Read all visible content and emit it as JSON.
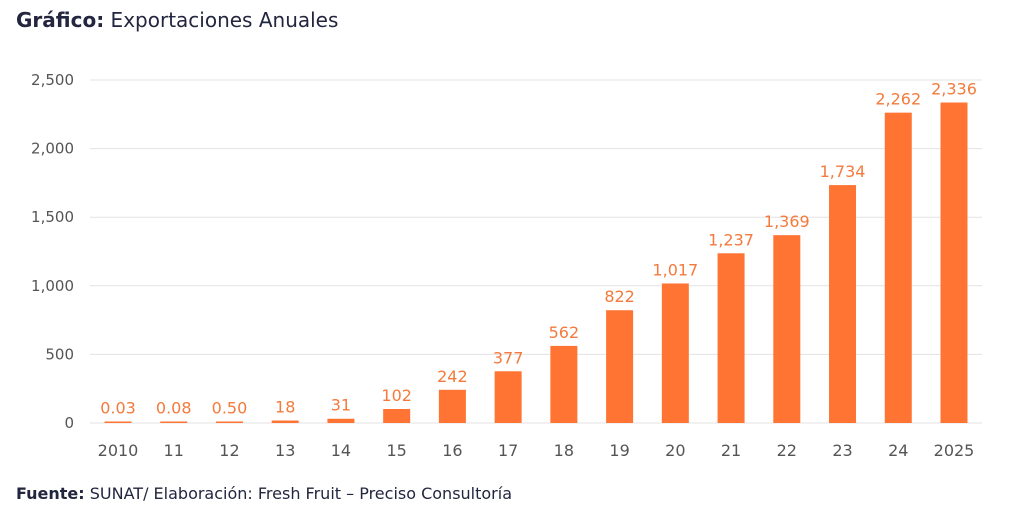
{
  "header": {
    "title_bold": "Gráfico:",
    "title_rest": " Exportaciones Anuales"
  },
  "footer": {
    "source_bold": "Fuente:",
    "source_rest": " SUNAT/ Elaboración: Fresh Fruit – Preciso Consultoría"
  },
  "colors": {
    "bar": "#FF7433",
    "label": "#F47A3C",
    "grid": "#e3e3e3"
  },
  "chart_data": {
    "type": "bar",
    "title": "Exportaciones Anuales",
    "categories": [
      "2010",
      "11",
      "12",
      "13",
      "14",
      "15",
      "16",
      "17",
      "18",
      "19",
      "20",
      "21",
      "22",
      "23",
      "24",
      "2025"
    ],
    "values": [
      0.03,
      0.08,
      0.5,
      18,
      31,
      102,
      242,
      377,
      562,
      822,
      1017,
      1237,
      1369,
      1734,
      2262,
      2336
    ],
    "data_labels": [
      "0.03",
      "0.08",
      "0.50",
      "18",
      "31",
      "102",
      "242",
      "377",
      "562",
      "822",
      "1,017",
      "1,237",
      "1,369",
      "1,734",
      "2,262",
      "2,336"
    ],
    "yticks": [
      0,
      500,
      1000,
      1500,
      2000,
      2500
    ],
    "ytick_labels": [
      "0",
      "500",
      "1,000",
      "1,500",
      "2,000",
      "2,500"
    ],
    "ylim": [
      0,
      2500
    ],
    "grid": true,
    "xlabel": "",
    "ylabel": ""
  }
}
